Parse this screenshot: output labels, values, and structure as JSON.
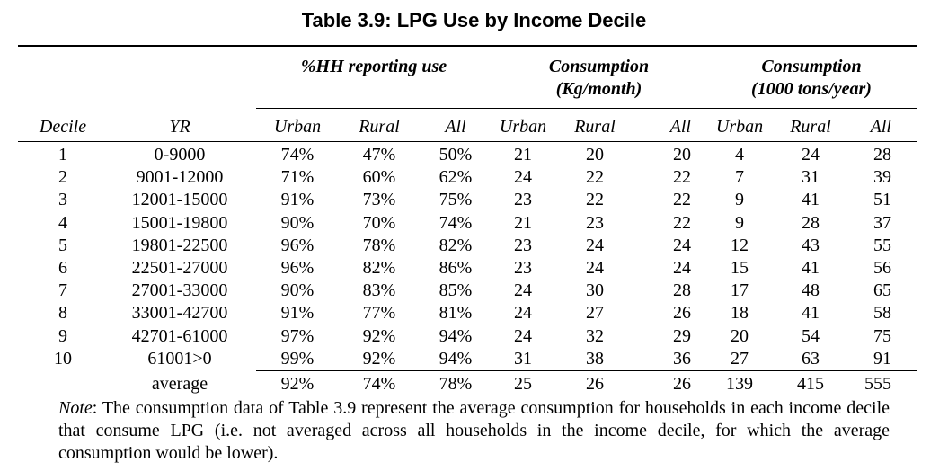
{
  "title": "Table 3.9: LPG Use by Income Decile",
  "group_headers": {
    "hh_use": "%HH reporting use",
    "cons_month_line1": "Consumption",
    "cons_month_line2": "(Kg/month)",
    "cons_year_line1": "Consumption",
    "cons_year_line2": "(1000 tons/year)"
  },
  "columns": [
    "Decile",
    "YR",
    "Urban",
    "Rural",
    "All",
    "Urban",
    "Rural",
    "All",
    "Urban",
    "Rural",
    "All"
  ],
  "rows": [
    [
      "1",
      "0-9000",
      "74%",
      "47%",
      "50%",
      "21",
      "20",
      "20",
      "4",
      "24",
      "28"
    ],
    [
      "2",
      "9001-12000",
      "71%",
      "60%",
      "62%",
      "24",
      "22",
      "22",
      "7",
      "31",
      "39"
    ],
    [
      "3",
      "12001-15000",
      "91%",
      "73%",
      "75%",
      "23",
      "22",
      "22",
      "9",
      "41",
      "51"
    ],
    [
      "4",
      "15001-19800",
      "90%",
      "70%",
      "74%",
      "21",
      "23",
      "22",
      "9",
      "28",
      "37"
    ],
    [
      "5",
      "19801-22500",
      "96%",
      "78%",
      "82%",
      "23",
      "24",
      "24",
      "12",
      "43",
      "55"
    ],
    [
      "6",
      "22501-27000",
      "96%",
      "82%",
      "86%",
      "23",
      "24",
      "24",
      "15",
      "41",
      "56"
    ],
    [
      "7",
      "27001-33000",
      "90%",
      "83%",
      "85%",
      "24",
      "30",
      "28",
      "17",
      "48",
      "65"
    ],
    [
      "8",
      "33001-42700",
      "91%",
      "77%",
      "81%",
      "24",
      "27",
      "26",
      "18",
      "41",
      "58"
    ],
    [
      "9",
      "42701-61000",
      "97%",
      "92%",
      "94%",
      "24",
      "32",
      "29",
      "20",
      "54",
      "75"
    ],
    [
      "10",
      "61001>0",
      "99%",
      "92%",
      "94%",
      "31",
      "38",
      "36",
      "27",
      "63",
      "91"
    ]
  ],
  "average_row": [
    "",
    "average",
    "92%",
    "74%",
    "78%",
    "25",
    "26",
    "26",
    "139",
    "415",
    "555"
  ],
  "note": {
    "lead": "Note",
    "text": ": The consumption data of Table 3.9 represent the average consumption for households in each income decile that consume LPG (i.e. not averaged across all households in the income decile, for which the average consumption would be lower)."
  }
}
